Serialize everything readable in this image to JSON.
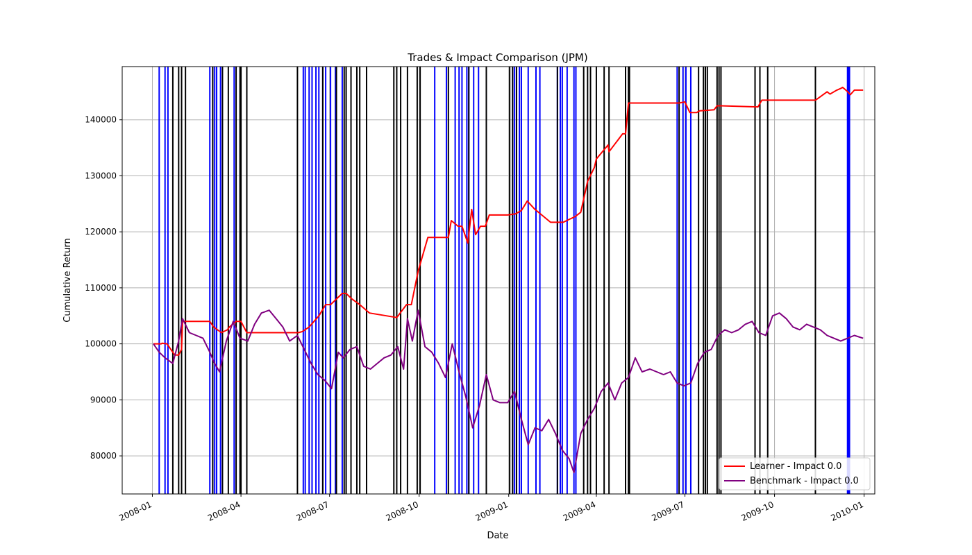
{
  "chart_data": {
    "type": "line",
    "title": "Trades & Impact Comparison (JPM)",
    "xlabel": "Date",
    "ylabel": "Cumulative Return",
    "xlim": [
      "2007-12-01",
      "2010-01-12"
    ],
    "ylim": [
      73200,
      149500
    ],
    "grid": true,
    "legend_position": "bottom-right",
    "x_ticks": [
      "2008-01",
      "2008-04",
      "2008-07",
      "2008-10",
      "2009-01",
      "2009-04",
      "2009-07",
      "2009-10",
      "2010-01"
    ],
    "x_tick_dates": [
      "2008-01-01",
      "2008-04-01",
      "2008-07-01",
      "2008-10-01",
      "2009-01-01",
      "2009-04-01",
      "2009-07-01",
      "2009-10-01",
      "2010-01-01"
    ],
    "y_ticks": [
      80000,
      90000,
      100000,
      110000,
      120000,
      130000,
      140000
    ],
    "colors": {
      "learner": "#ff0000",
      "benchmark": "#800080",
      "long": "#0000ff",
      "short": "#000000",
      "grid": "#b0b0b0"
    },
    "series": [
      {
        "name": "Learner - Impact 0.0",
        "color": "#ff0000",
        "x": [
          "2008-01-02",
          "2008-01-10",
          "2008-01-11",
          "2008-01-16",
          "2008-01-24",
          "2008-01-28",
          "2008-01-31",
          "2008-02-01",
          "2008-02-29",
          "2008-03-04",
          "2008-03-12",
          "2008-03-18",
          "2008-03-20",
          "2008-03-27",
          "2008-04-01",
          "2008-04-07",
          "2008-05-30",
          "2008-06-03",
          "2008-06-10",
          "2008-06-20",
          "2008-06-27",
          "2008-07-02",
          "2008-07-14",
          "2008-07-18",
          "2008-07-24",
          "2008-08-01",
          "2008-08-11",
          "2008-09-08",
          "2008-09-18",
          "2008-09-23",
          "2008-09-30",
          "2008-10-10",
          "2008-10-31",
          "2008-11-03",
          "2008-11-10",
          "2008-11-14",
          "2008-11-20",
          "2008-11-24",
          "2008-11-28",
          "2008-12-03",
          "2008-12-08",
          "2008-12-12",
          "2008-12-22",
          "2008-12-31",
          "2009-01-08",
          "2009-01-14",
          "2009-01-20",
          "2009-01-28",
          "2009-02-13",
          "2009-02-20",
          "2009-02-26",
          "2009-03-05",
          "2009-03-10",
          "2009-03-16",
          "2009-03-23",
          "2009-03-30",
          "2009-04-01",
          "2009-04-13",
          "2009-04-14",
          "2009-04-28",
          "2009-05-01",
          "2009-05-04",
          "2009-06-25",
          "2009-07-01",
          "2009-07-06",
          "2009-07-13",
          "2009-07-16",
          "2009-07-24",
          "2009-07-31",
          "2009-08-03",
          "2009-08-07",
          "2009-09-14",
          "2009-09-18",
          "2009-09-22",
          "2009-11-12",
          "2009-11-16",
          "2009-11-24",
          "2009-11-27",
          "2009-12-01",
          "2009-12-04",
          "2009-12-08",
          "2009-12-10",
          "2009-12-14",
          "2009-12-18",
          "2009-12-22",
          "2009-12-24",
          "2009-12-31"
        ],
        "values": [
          100000,
          100000,
          100100,
          100000,
          98000,
          98000,
          99000,
          104000,
          104000,
          103000,
          102000,
          102500,
          103000,
          104000,
          104000,
          102000,
          102000,
          102200,
          103000,
          105000,
          107000,
          107000,
          109000,
          109000,
          108000,
          107000,
          105500,
          104700,
          107000,
          107000,
          113000,
          119000,
          119000,
          122000,
          121000,
          121000,
          118000,
          124000,
          119500,
          121000,
          121000,
          123000,
          123000,
          123000,
          123200,
          123800,
          125500,
          124000,
          121700,
          121700,
          121700,
          122300,
          122700,
          123500,
          129000,
          131500,
          133000,
          135500,
          134300,
          137500,
          137500,
          143000,
          143000,
          143200,
          141300,
          141300,
          141600,
          141700,
          141800,
          142500,
          142500,
          142300,
          143500,
          143500,
          143500,
          144000,
          145000,
          144600,
          145000,
          145300,
          145600,
          145800,
          145200,
          144500,
          145300,
          145300,
          145300
        ]
      },
      {
        "name": "Benchmark - Impact 0.0",
        "color": "#800080",
        "x": [
          "2008-01-02",
          "2008-01-08",
          "2008-01-14",
          "2008-01-22",
          "2008-01-28",
          "2008-02-01",
          "2008-02-08",
          "2008-02-15",
          "2008-02-22",
          "2008-02-29",
          "2008-03-05",
          "2008-03-10",
          "2008-03-17",
          "2008-03-24",
          "2008-03-31",
          "2008-04-08",
          "2008-04-15",
          "2008-04-22",
          "2008-04-30",
          "2008-05-07",
          "2008-05-14",
          "2008-05-21",
          "2008-05-29",
          "2008-06-05",
          "2008-06-12",
          "2008-06-19",
          "2008-06-26",
          "2008-07-03",
          "2008-07-10",
          "2008-07-15",
          "2008-07-22",
          "2008-07-29",
          "2008-08-05",
          "2008-08-12",
          "2008-08-19",
          "2008-08-26",
          "2008-09-02",
          "2008-09-09",
          "2008-09-15",
          "2008-09-19",
          "2008-09-24",
          "2008-09-30",
          "2008-10-07",
          "2008-10-14",
          "2008-10-21",
          "2008-10-28",
          "2008-11-04",
          "2008-11-11",
          "2008-11-18",
          "2008-11-25",
          "2008-12-02",
          "2008-12-09",
          "2008-12-16",
          "2008-12-23",
          "2008-12-31",
          "2009-01-07",
          "2009-01-14",
          "2009-01-21",
          "2009-01-28",
          "2009-02-04",
          "2009-02-11",
          "2009-02-18",
          "2009-02-25",
          "2009-03-04",
          "2009-03-09",
          "2009-03-16",
          "2009-03-23",
          "2009-03-30",
          "2009-04-06",
          "2009-04-13",
          "2009-04-20",
          "2009-04-27",
          "2009-05-04",
          "2009-05-11",
          "2009-05-18",
          "2009-05-26",
          "2009-06-02",
          "2009-06-09",
          "2009-06-16",
          "2009-06-23",
          "2009-06-30",
          "2009-07-07",
          "2009-07-14",
          "2009-07-21",
          "2009-07-28",
          "2009-08-04",
          "2009-08-11",
          "2009-08-18",
          "2009-08-25",
          "2009-09-01",
          "2009-09-08",
          "2009-09-15",
          "2009-09-22",
          "2009-09-29",
          "2009-10-06",
          "2009-10-13",
          "2009-10-20",
          "2009-10-27",
          "2009-11-03",
          "2009-11-10",
          "2009-11-17",
          "2009-11-24",
          "2009-12-01",
          "2009-12-08",
          "2009-12-15",
          "2009-12-22",
          "2009-12-31"
        ],
        "values": [
          100000,
          98500,
          97500,
          96500,
          100500,
          104500,
          102000,
          101500,
          101000,
          98500,
          96500,
          95000,
          100500,
          104000,
          101000,
          100500,
          103500,
          105500,
          106000,
          104500,
          103000,
          100500,
          101500,
          99000,
          96500,
          94500,
          93500,
          92000,
          98500,
          97500,
          99000,
          99500,
          96000,
          95500,
          96500,
          97500,
          98000,
          99500,
          95500,
          104500,
          100500,
          106000,
          99500,
          98500,
          96500,
          94000,
          100000,
          95000,
          90500,
          85000,
          89000,
          94500,
          90000,
          89500,
          89500,
          91500,
          86500,
          82000,
          85000,
          84500,
          86500,
          84000,
          81000,
          79500,
          77000,
          84000,
          86500,
          88500,
          91500,
          93000,
          90000,
          93000,
          94000,
          97500,
          95000,
          95500,
          95000,
          94500,
          95000,
          93000,
          92500,
          93000,
          96500,
          98500,
          99000,
          101500,
          102500,
          102000,
          102500,
          103500,
          104000,
          102000,
          101500,
          105000,
          105500,
          104500,
          103000,
          102500,
          103500,
          103000,
          102500,
          101500,
          101000,
          100500,
          101000,
          101500,
          101000
        ]
      }
    ],
    "trades": {
      "long": [
        "2008-01-08",
        "2008-01-14",
        "2008-01-17",
        "2008-02-29",
        "2008-03-03",
        "2008-03-05",
        "2008-03-07",
        "2008-03-11",
        "2008-03-25",
        "2008-06-04",
        "2008-06-06",
        "2008-06-10",
        "2008-06-13",
        "2008-06-17",
        "2008-06-20",
        "2008-06-24",
        "2008-06-27",
        "2008-07-02",
        "2008-07-07",
        "2008-07-14",
        "2008-10-17",
        "2008-10-29",
        "2008-11-07",
        "2008-11-11",
        "2008-11-14",
        "2008-11-19",
        "2008-11-21",
        "2008-11-26",
        "2008-12-01",
        "2009-01-05",
        "2009-01-07",
        "2009-01-12",
        "2009-01-14",
        "2009-01-21",
        "2009-01-29",
        "2009-02-02",
        "2009-02-20",
        "2009-02-23",
        "2009-02-25",
        "2009-03-02",
        "2009-03-09",
        "2009-03-11",
        "2009-06-23",
        "2009-06-29",
        "2009-07-02",
        "2009-07-07",
        "2009-12-15",
        "2009-12-16",
        "2009-12-17"
      ],
      "short": [
        "2008-01-22",
        "2008-01-28",
        "2008-01-31",
        "2008-02-04",
        "2008-03-03",
        "2008-03-13",
        "2008-03-19",
        "2008-03-27",
        "2008-03-31",
        "2008-04-01",
        "2008-04-07",
        "2008-05-29",
        "2008-06-24",
        "2008-07-08",
        "2008-07-16",
        "2008-07-18",
        "2008-07-23",
        "2008-07-29",
        "2008-08-01",
        "2008-08-08",
        "2008-09-05",
        "2008-09-08",
        "2008-09-12",
        "2008-09-19",
        "2008-09-29",
        "2008-10-02",
        "2008-10-31",
        "2008-11-21",
        "2008-12-09",
        "2009-01-02",
        "2009-01-05",
        "2009-01-09",
        "2009-02-20",
        "2009-03-19",
        "2009-03-23",
        "2009-03-26",
        "2009-04-01",
        "2009-04-09",
        "2009-04-14",
        "2009-05-01",
        "2009-05-04",
        "2009-05-05",
        "2009-06-25",
        "2009-07-15",
        "2009-07-20",
        "2009-07-22",
        "2009-07-24",
        "2009-08-03",
        "2009-08-05",
        "2009-08-07",
        "2009-09-11",
        "2009-09-16",
        "2009-09-24",
        "2009-11-12"
      ]
    }
  }
}
